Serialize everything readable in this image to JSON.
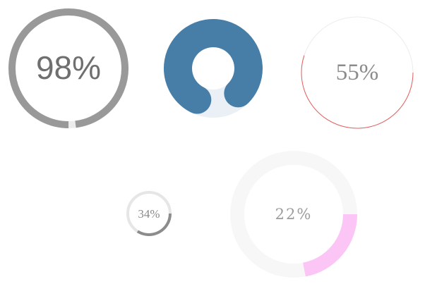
{
  "gauges": [
    {
      "id": "g1",
      "label": "98%",
      "percent": 98,
      "track_color": "#ececec",
      "fill_color": "#999999",
      "text_color": "#6f6f6f",
      "direction": "cw",
      "start_angle": 90,
      "rounded_caps": false,
      "show_label": true
    },
    {
      "id": "g2",
      "label": "",
      "percent": 80,
      "track_color": "#eaf0f5",
      "fill_color": "#477ea8",
      "text_color": "#477ea8",
      "direction": "ccw",
      "start_angle": 45,
      "rounded_caps": true,
      "show_label": false
    },
    {
      "id": "g3",
      "label": "55%",
      "percent": 55,
      "track_color": "#ececec",
      "fill_color": "#e55c5c",
      "text_color": "#8b8b8b",
      "direction": "cw",
      "start_angle": 0,
      "rounded_caps": false,
      "show_label": true
    },
    {
      "id": "g4",
      "label": "34%",
      "percent": 34,
      "track_color": "#e6e6e6",
      "fill_color": "#8c8c8c",
      "text_color": "#8a8a8a",
      "direction": "cw",
      "start_angle": 0,
      "rounded_caps": false,
      "show_label": true
    },
    {
      "id": "g5",
      "label": "22%",
      "percent": 22,
      "track_color": "#f7f7f7",
      "fill_color": "#fbc6f6",
      "text_color": "#9c9c9c",
      "direction": "cw",
      "start_angle": 0,
      "rounded_caps": false,
      "show_label": true
    }
  ]
}
